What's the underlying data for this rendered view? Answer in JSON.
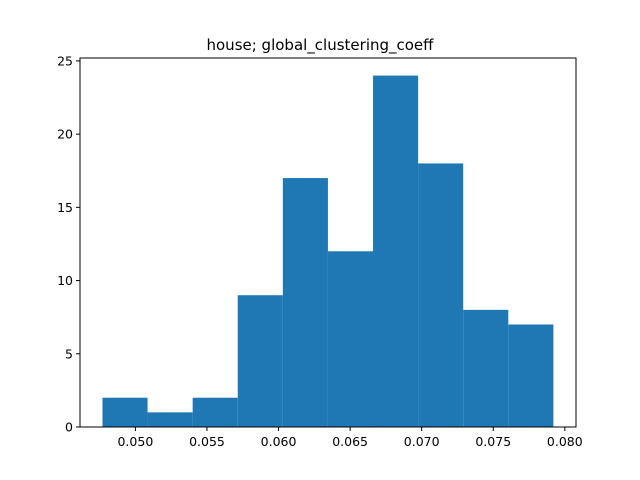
{
  "chart_data": {
    "type": "bar",
    "title": "house; global_clustering_coeff",
    "xlabel": "",
    "ylabel": "",
    "bin_edges": [
      0.0477,
      0.05085,
      0.054,
      0.05715,
      0.0603,
      0.06345,
      0.0666,
      0.06975,
      0.0729,
      0.07605,
      0.0792
    ],
    "values": [
      2,
      1,
      2,
      9,
      17,
      12,
      24,
      18,
      8,
      7
    ],
    "xlim": [
      0.04613,
      0.08078
    ],
    "ylim": [
      0,
      25.2
    ],
    "x_ticks": [
      0.05,
      0.055,
      0.06,
      0.065,
      0.07,
      0.075,
      0.08
    ],
    "x_tick_labels": [
      "0.050",
      "0.055",
      "0.060",
      "0.065",
      "0.070",
      "0.075",
      "0.080"
    ],
    "y_ticks": [
      0,
      5,
      10,
      15,
      20,
      25
    ],
    "y_tick_labels": [
      "0",
      "5",
      "10",
      "15",
      "20",
      "25"
    ],
    "bar_color": "#1f77b4",
    "grid": false
  }
}
